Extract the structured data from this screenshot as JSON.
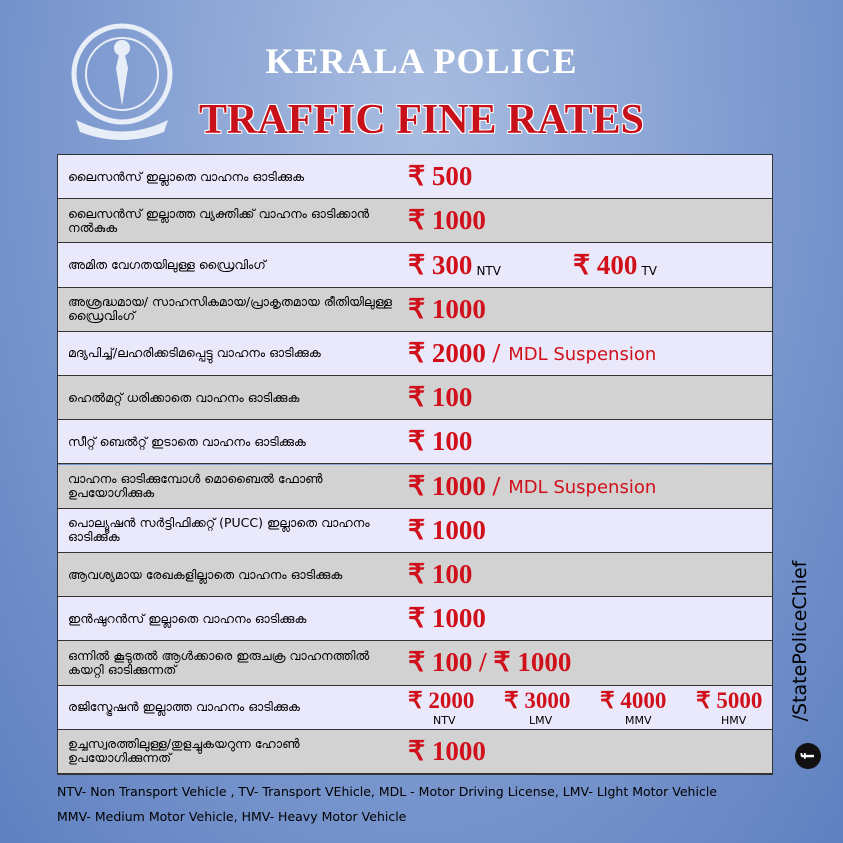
{
  "header": {
    "title": "KERALA POLICE",
    "subtitle": "TRAFFIC FINE RATES"
  },
  "table": {
    "rows": [
      {
        "offence": "ലൈസൻസ് ഇല്ലാതെ വാഹനം ഓടിക്കുക",
        "fines": [
          {
            "amount": "₹ 500"
          }
        ]
      },
      {
        "offence": "ലൈസൻസ് ഇല്ലാത്ത വ്യക്തിക്ക് വാഹനം ഓടിക്കാൻ നൽകുക",
        "fines": [
          {
            "amount": "₹ 1000"
          }
        ]
      },
      {
        "offence": "അമിത വേഗതയിലുള്ള ഡ്രൈവിംഗ്",
        "fines": [
          {
            "amount": "₹ 300",
            "note": "NTV"
          },
          {
            "amount": "₹ 400",
            "note": "TV"
          }
        ]
      },
      {
        "offence": "അശ്രദ്ധമായ/ സാഹസികമായ/പ്രാകൃതമായ രീതിയിലുള്ള ഡ്രൈവിംഗ്",
        "fines": [
          {
            "amount": "₹ 1000"
          }
        ]
      },
      {
        "offence": "മദ്യപിച്ച്/ലഹരിക്കടിമപ്പെട്ടു വാഹനം ഓടിക്കുക",
        "fines": [
          {
            "amount": "₹ 2000 /",
            "penalty": "MDL Suspension"
          }
        ]
      },
      {
        "offence": "ഹെൽമറ്റ് ധരിക്കാതെ വാഹനം ഓടിക്കുക",
        "fines": [
          {
            "amount": "₹ 100"
          }
        ]
      },
      {
        "offence": "സീറ്റ് ബെൽറ്റ്  ഇടാതെ വാഹനം ഓടിക്കുക",
        "fines": [
          {
            "amount": "₹ 100"
          }
        ]
      },
      {
        "offence": "വാഹനം ഓടിക്കുമ്പോൾ മൊബൈൽ ഫോൺ ഉപയോഗിക്കുക",
        "fines": [
          {
            "amount": "₹ 1000 /",
            "penalty": "MDL Suspension"
          }
        ]
      },
      {
        "offence": "പൊല്യൂഷൻ സർട്ടിഫിക്കറ്റ് (PUCC) ഇല്ലാതെ വാഹനം ഓടിക്കുക",
        "fines": [
          {
            "amount": "₹ 1000"
          }
        ]
      },
      {
        "offence": "ആവശ്യമായ രേഖകളില്ലാതെ വാഹനം ഓടിക്കുക",
        "fines": [
          {
            "amount": "₹ 100"
          }
        ]
      },
      {
        "offence": "ഇൻഷുറൻസ് ഇല്ലാതെ വാഹനം ഓടിക്കുക",
        "fines": [
          {
            "amount": "₹ 1000"
          }
        ]
      },
      {
        "offence": "ഒന്നിൽ കൂടുതൽ ആൾക്കാരെ ഇരുചക്ര വാഹനത്തിൽ കയറ്റി ഓടിക്കുന്നത്",
        "fines": [
          {
            "amount": "₹ 100 / ₹ 1000"
          }
        ]
      },
      {
        "offence": "രജിസ്ട്രേഷൻ ഇല്ലാത്ത വാഹനം ഓടിക്കുക",
        "fines": [
          {
            "amount": "₹ 2000",
            "note": "NTV"
          },
          {
            "amount": "₹ 3000",
            "note": "LMV"
          },
          {
            "amount": "₹ 4000",
            "note": "MMV"
          },
          {
            "amount": "₹ 5000",
            "note": "HMV"
          }
        ]
      },
      {
        "offence": "ഉച്ചസ്വരത്തിലുള്ള/തുളച്ചുകയറുന്ന ഹോൺ ഉപയോഗിക്കുന്നത്",
        "fines": [
          {
            "amount": "₹ 1000"
          }
        ]
      }
    ]
  },
  "footer": {
    "notes": [
      "NTV- Non Transport Vehicle , TV- Transport VEhicle, MDL - Motor Driving License, LMV- LIght Motor Vehicle",
      "MMV- Medium Motor Vehicle, HMV- Heavy Motor Vehicle"
    ]
  },
  "sidebar": {
    "handle": "/StatePoliceChief"
  }
}
